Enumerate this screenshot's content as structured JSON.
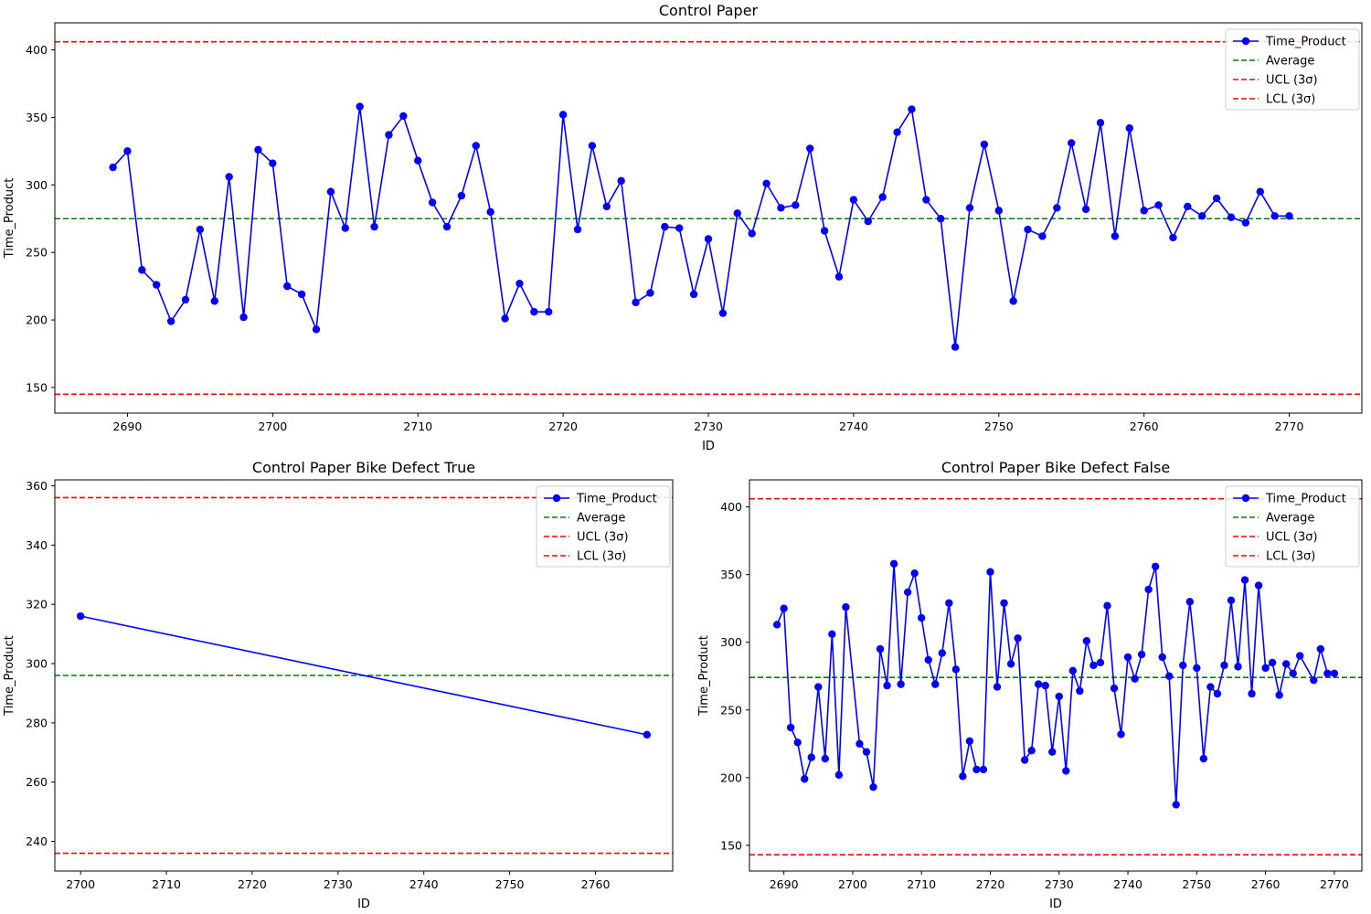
{
  "chart_data": [
    {
      "type": "line",
      "title": "Control Paper",
      "xlabel": "ID",
      "ylabel": "Time_Product",
      "xlim": [
        2685,
        2775
      ],
      "ylim": [
        131,
        420
      ],
      "xticks": [
        2690,
        2700,
        2710,
        2720,
        2730,
        2740,
        2750,
        2760,
        2770
      ],
      "yticks": [
        150,
        200,
        250,
        300,
        350,
        400
      ],
      "legend_position": "top-right",
      "grid": false,
      "series": [
        {
          "name": "Time_Product",
          "color": "#0000ff",
          "style": "solid-with-circle-markers",
          "x": [
            2689,
            2690,
            2691,
            2692,
            2693,
            2694,
            2695,
            2696,
            2697,
            2698,
            2699,
            2700,
            2701,
            2702,
            2703,
            2704,
            2705,
            2706,
            2707,
            2708,
            2709,
            2710,
            2711,
            2712,
            2713,
            2714,
            2715,
            2716,
            2717,
            2718,
            2719,
            2720,
            2721,
            2722,
            2723,
            2724,
            2725,
            2726,
            2727,
            2728,
            2729,
            2730,
            2731,
            2732,
            2733,
            2734,
            2735,
            2736,
            2737,
            2738,
            2739,
            2740,
            2741,
            2742,
            2743,
            2744,
            2745,
            2746,
            2747,
            2748,
            2749,
            2750,
            2751,
            2752,
            2753,
            2754,
            2755,
            2756,
            2757,
            2758,
            2759,
            2760,
            2761,
            2762,
            2763,
            2764,
            2765,
            2766,
            2767,
            2768,
            2769,
            2770
          ],
          "y": [
            313,
            325,
            237,
            226,
            199,
            215,
            267,
            214,
            306,
            202,
            326,
            316,
            225,
            219,
            193,
            295,
            268,
            358,
            269,
            337,
            351,
            318,
            287,
            269,
            292,
            329,
            280,
            201,
            227,
            206,
            206,
            352,
            267,
            329,
            284,
            303,
            213,
            220,
            269,
            268,
            219,
            260,
            205,
            279,
            264,
            301,
            283,
            285,
            327,
            266,
            232,
            289,
            273,
            291,
            339,
            356,
            289,
            275,
            180,
            283,
            330,
            281,
            214,
            267,
            262,
            283,
            331,
            282,
            346,
            262,
            342,
            281,
            285,
            261,
            284,
            277,
            290,
            276,
            272,
            295,
            277,
            277
          ]
        },
        {
          "name": "Average",
          "color": "#008000",
          "style": "dashed",
          "value": 275
        },
        {
          "name": "UCL (3σ)",
          "color": "#ff0000",
          "style": "dashed",
          "value": 406
        },
        {
          "name": "LCL (3σ)",
          "color": "#ff0000",
          "style": "dashed",
          "value": 145
        }
      ]
    },
    {
      "type": "line",
      "title": "Control Paper Bike Defect True",
      "xlabel": "ID",
      "ylabel": "Time_Product",
      "xlim": [
        2697,
        2769
      ],
      "ylim": [
        230,
        362
      ],
      "xticks": [
        2700,
        2710,
        2720,
        2730,
        2740,
        2750,
        2760
      ],
      "yticks": [
        240,
        260,
        280,
        300,
        320,
        340,
        360
      ],
      "legend_position": "top-right",
      "grid": false,
      "series": [
        {
          "name": "Time_Product",
          "color": "#0000ff",
          "style": "solid-with-circle-markers",
          "x": [
            2700,
            2766
          ],
          "y": [
            316,
            276
          ]
        },
        {
          "name": "Average",
          "color": "#008000",
          "style": "dashed",
          "value": 296
        },
        {
          "name": "UCL (3σ)",
          "color": "#ff0000",
          "style": "dashed",
          "value": 356
        },
        {
          "name": "LCL (3σ)",
          "color": "#ff0000",
          "style": "dashed",
          "value": 236
        }
      ]
    },
    {
      "type": "line",
      "title": "Control Paper Bike Defect False",
      "xlabel": "ID",
      "ylabel": "Time_Product",
      "xlim": [
        2685,
        2774
      ],
      "ylim": [
        131,
        420
      ],
      "xticks": [
        2690,
        2700,
        2710,
        2720,
        2730,
        2740,
        2750,
        2760,
        2770
      ],
      "yticks": [
        150,
        200,
        250,
        300,
        350,
        400
      ],
      "legend_position": "top-right",
      "grid": false,
      "series": [
        {
          "name": "Time_Product",
          "color": "#0000ff",
          "style": "solid-with-circle-markers",
          "x": [
            2689,
            2690,
            2691,
            2692,
            2693,
            2694,
            2695,
            2696,
            2697,
            2698,
            2699,
            2701,
            2702,
            2703,
            2704,
            2705,
            2706,
            2707,
            2708,
            2709,
            2710,
            2711,
            2712,
            2713,
            2714,
            2715,
            2716,
            2717,
            2718,
            2719,
            2720,
            2721,
            2722,
            2723,
            2724,
            2725,
            2726,
            2727,
            2728,
            2729,
            2730,
            2731,
            2732,
            2733,
            2734,
            2735,
            2736,
            2737,
            2738,
            2739,
            2740,
            2741,
            2742,
            2743,
            2744,
            2745,
            2746,
            2747,
            2748,
            2749,
            2750,
            2751,
            2752,
            2753,
            2754,
            2755,
            2756,
            2757,
            2758,
            2759,
            2760,
            2761,
            2762,
            2763,
            2764,
            2765,
            2767,
            2768,
            2769,
            2770
          ],
          "y": [
            313,
            325,
            237,
            226,
            199,
            215,
            267,
            214,
            306,
            202,
            326,
            225,
            219,
            193,
            295,
            268,
            358,
            269,
            337,
            351,
            318,
            287,
            269,
            292,
            329,
            280,
            201,
            227,
            206,
            206,
            352,
            267,
            329,
            284,
            303,
            213,
            220,
            269,
            268,
            219,
            260,
            205,
            279,
            264,
            301,
            283,
            285,
            327,
            266,
            232,
            289,
            273,
            291,
            339,
            356,
            289,
            275,
            180,
            283,
            330,
            281,
            214,
            267,
            262,
            283,
            331,
            282,
            346,
            262,
            342,
            281,
            285,
            261,
            284,
            277,
            290,
            272,
            295,
            277,
            277
          ]
        },
        {
          "name": "Average",
          "color": "#008000",
          "style": "dashed",
          "value": 274
        },
        {
          "name": "UCL (3σ)",
          "color": "#ff0000",
          "style": "dashed",
          "value": 406
        },
        {
          "name": "LCL (3σ)",
          "color": "#ff0000",
          "style": "dashed",
          "value": 143
        }
      ]
    }
  ]
}
